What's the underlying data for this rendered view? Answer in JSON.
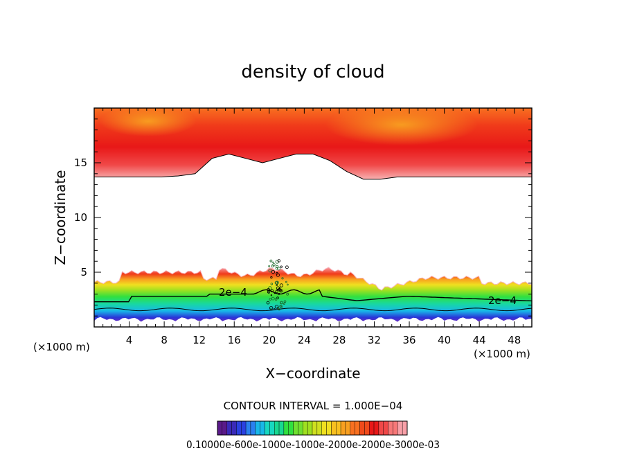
{
  "chart_data": {
    "type": "heatmap",
    "title": "density of cloud",
    "xlabel": "X−coordinate",
    "ylabel": "Z−coordinate",
    "x_unit_left": "(×1000 m)",
    "x_unit_right": "(×1000 m)",
    "xlim": [
      0,
      50
    ],
    "ylim": [
      0,
      20
    ],
    "x_ticks": [
      4,
      8,
      12,
      16,
      20,
      24,
      28,
      32,
      36,
      40,
      44,
      48
    ],
    "x_tick_labels": [
      "4",
      "8",
      "12",
      "16",
      "20",
      "24",
      "28",
      "32",
      "36",
      "40",
      "44",
      "48"
    ],
    "y_ticks": [
      5,
      10,
      15
    ],
    "y_tick_labels": [
      "5",
      "10",
      "15"
    ],
    "contour_interval_text": "CONTOUR INTERVAL = 1.000E−04",
    "contour_labels": [
      "2e−4",
      "2e−4"
    ],
    "colorbar_label_text": "0.10000e-600e-1000e-1000e-2000e-2000e-3000e-03",
    "upper_layer_bottom_z": [
      13.7,
      13.7,
      13.7,
      13.7,
      13.7,
      13.8,
      14.0,
      15.4,
      15.8,
      15.4,
      15.0,
      15.4,
      15.8,
      15.8,
      15.2,
      14.2,
      13.5,
      13.5,
      13.7,
      13.7,
      13.7,
      13.7,
      13.7,
      13.7,
      13.7,
      13.7,
      13.7
    ]
  }
}
